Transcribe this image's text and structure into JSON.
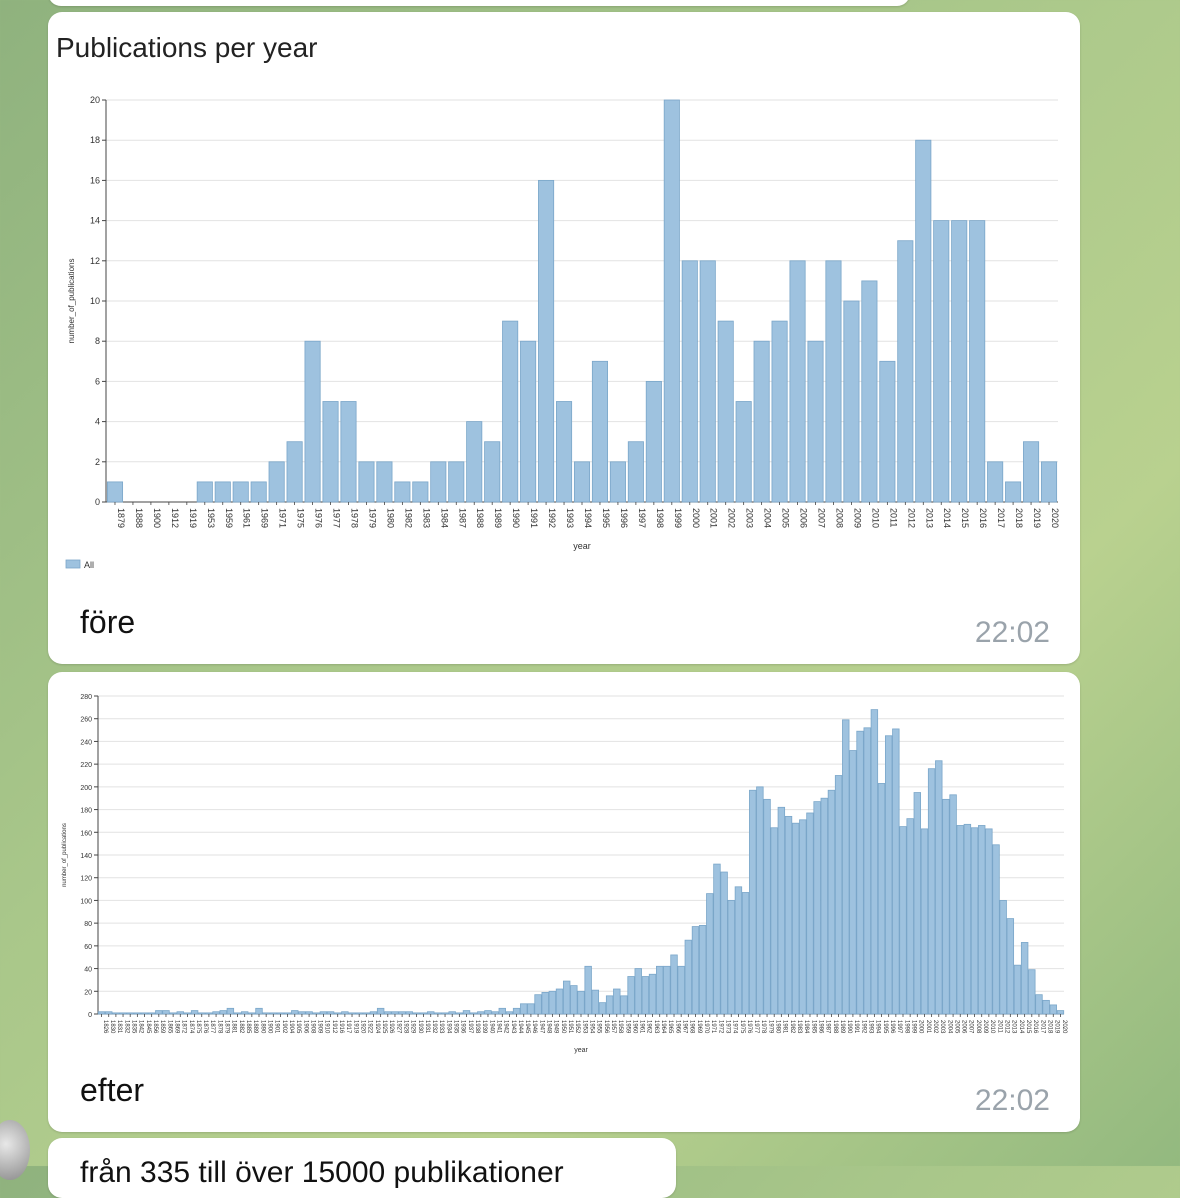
{
  "messages": [
    {
      "caption": "före",
      "time": "22:02",
      "chart_data": {
        "type": "bar",
        "title": "Publications per year",
        "xlabel": "year",
        "ylabel": "number_of_publications",
        "ylim": [
          0,
          20
        ],
        "yticks": [
          0,
          2,
          4,
          6,
          8,
          10,
          12,
          14,
          16,
          18,
          20
        ],
        "legend": [
          "All"
        ],
        "legend_position": "bottom-left",
        "categories": [
          "1879",
          "1888",
          "1900",
          "1912",
          "1919",
          "1953",
          "1959",
          "1961",
          "1969",
          "1971",
          "1975",
          "1976",
          "1977",
          "1978",
          "1979",
          "1980",
          "1982",
          "1983",
          "1984",
          "1987",
          "1988",
          "1989",
          "1990",
          "1991",
          "1992",
          "1993",
          "1994",
          "1995",
          "1996",
          "1997",
          "1998",
          "1999",
          "2000",
          "2001",
          "2002",
          "2003",
          "2004",
          "2005",
          "2006",
          "2007",
          "2008",
          "2009",
          "2010",
          "2011",
          "2012",
          "2013",
          "2014",
          "2015",
          "2016",
          "2017",
          "2018",
          "2019",
          "2020"
        ],
        "values": [
          1,
          0,
          0,
          0,
          0,
          1,
          1,
          1,
          1,
          2,
          3,
          8,
          5,
          5,
          2,
          2,
          1,
          1,
          2,
          2,
          4,
          3,
          9,
          8,
          16,
          5,
          2,
          7,
          2,
          3,
          6,
          20,
          12,
          12,
          9,
          5,
          8,
          9,
          12,
          8,
          12,
          10,
          11,
          7,
          13,
          18,
          14,
          14,
          14,
          2,
          1,
          3,
          2
        ]
      }
    },
    {
      "caption": "efter",
      "time": "22:02",
      "chart_data": {
        "type": "bar",
        "xlabel": "year",
        "ylabel": "number_of_publications",
        "ylim": [
          0,
          280
        ],
        "yticks": [
          0,
          20,
          40,
          60,
          80,
          100,
          120,
          140,
          160,
          180,
          200,
          220,
          240,
          260,
          280
        ],
        "categories": [
          "1826",
          "1830",
          "1831",
          "1832",
          "1835",
          "1842",
          "1845",
          "1856",
          "1859",
          "1865",
          "1869",
          "1872",
          "1874",
          "1875",
          "1876",
          "1877",
          "1878",
          "1879",
          "1881",
          "1882",
          "1885",
          "1889",
          "1890",
          "1900",
          "1901",
          "1902",
          "1904",
          "1905",
          "1906",
          "1908",
          "1909",
          "1910",
          "1912",
          "1916",
          "1917",
          "1919",
          "1920",
          "1922",
          "1924",
          "1925",
          "1926",
          "1927",
          "1928",
          "1929",
          "1930",
          "1931",
          "1932",
          "1933",
          "1934",
          "1935",
          "1936",
          "1937",
          "1938",
          "1939",
          "1940",
          "1941",
          "1942",
          "1943",
          "1944",
          "1945",
          "1946",
          "1947",
          "1948",
          "1949",
          "1950",
          "1951",
          "1952",
          "1953",
          "1954",
          "1955",
          "1956",
          "1957",
          "1958",
          "1959",
          "1960",
          "1961",
          "1962",
          "1963",
          "1964",
          "1965",
          "1966",
          "1967",
          "1968",
          "1969",
          "1970",
          "1971",
          "1972",
          "1973",
          "1974",
          "1975",
          "1976",
          "1977",
          "1978",
          "1979",
          "1980",
          "1981",
          "1982",
          "1983",
          "1984",
          "1985",
          "1986",
          "1987",
          "1988",
          "1989",
          "1990",
          "1991",
          "1992",
          "1993",
          "1994",
          "1995",
          "1996",
          "1997",
          "1998",
          "1999",
          "2000",
          "2001",
          "2002",
          "2003",
          "2004",
          "2005",
          "2006",
          "2007",
          "2008",
          "2009",
          "2010",
          "2011",
          "2012",
          "2013",
          "2014",
          "2015",
          "2016",
          "2017",
          "2018",
          "2019",
          "2020"
        ],
        "values": [
          2,
          2,
          1,
          1,
          1,
          1,
          1,
          1,
          3,
          3,
          1,
          2,
          1,
          3,
          1,
          1,
          2,
          3,
          5,
          1,
          2,
          1,
          5,
          1,
          1,
          1,
          1,
          3,
          2,
          2,
          1,
          2,
          2,
          1,
          2,
          1,
          1,
          1,
          2,
          5,
          2,
          2,
          2,
          2,
          1,
          1,
          2,
          1,
          1,
          2,
          1,
          3,
          1,
          2,
          3,
          2,
          5,
          2,
          5,
          9,
          9,
          17,
          19,
          20,
          22,
          29,
          25,
          20,
          42,
          21,
          10,
          16,
          22,
          16,
          33,
          40,
          33,
          35,
          42,
          42,
          52,
          42,
          65,
          77,
          78,
          106,
          132,
          125,
          100,
          112,
          107,
          197,
          200,
          189,
          164,
          182,
          174,
          168,
          171,
          177,
          187,
          190,
          197,
          210,
          259,
          232,
          249,
          252,
          268,
          203,
          245,
          251,
          165,
          172,
          195,
          163,
          216,
          223,
          189,
          193,
          166,
          167,
          164,
          166,
          163,
          149,
          100,
          84,
          43,
          63,
          39,
          17,
          12,
          8,
          3
        ]
      }
    }
  ],
  "bottom_partial_text": "från 335 till över 15000 publikationer"
}
